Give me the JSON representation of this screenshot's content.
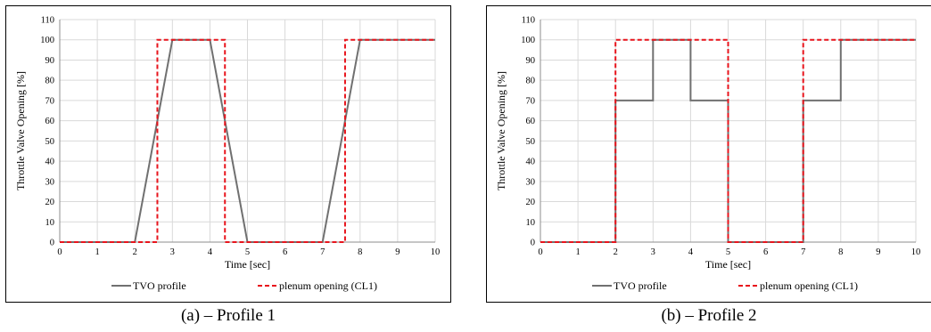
{
  "chart_data": [
    {
      "type": "line",
      "ylabel": "Throttle Valve Opening [%]",
      "xlabel": "Time [sec]",
      "xlim": [
        0,
        10
      ],
      "ylim": [
        0,
        110
      ],
      "xticks": [
        0,
        1,
        2,
        3,
        4,
        5,
        6,
        7,
        8,
        9,
        10
      ],
      "yticks": [
        0,
        10,
        20,
        30,
        40,
        50,
        60,
        70,
        80,
        90,
        100,
        110
      ],
      "grid": true,
      "legend": "bottom",
      "series": [
        {
          "name": "TVO profile",
          "color": "#707070",
          "style": "solid",
          "points": [
            [
              0,
              0
            ],
            [
              2,
              0
            ],
            [
              3,
              100
            ],
            [
              4,
              100
            ],
            [
              5,
              0
            ],
            [
              7,
              0
            ],
            [
              8,
              100
            ],
            [
              10,
              100
            ]
          ]
        },
        {
          "name": "plenum opening (CL1)",
          "color": "#e8141c",
          "style": "dashed",
          "points": [
            [
              0,
              0
            ],
            [
              2.6,
              0
            ],
            [
              2.6,
              100
            ],
            [
              4.4,
              100
            ],
            [
              4.4,
              0
            ],
            [
              7.6,
              0
            ],
            [
              7.6,
              100
            ],
            [
              10,
              100
            ]
          ]
        }
      ]
    },
    {
      "type": "line",
      "ylabel": "Throttle Valve Opening [%]",
      "xlabel": "Time [sec]",
      "xlim": [
        0,
        10
      ],
      "ylim": [
        0,
        110
      ],
      "xticks": [
        0,
        1,
        2,
        3,
        4,
        5,
        6,
        7,
        8,
        9,
        10
      ],
      "yticks": [
        0,
        10,
        20,
        30,
        40,
        50,
        60,
        70,
        80,
        90,
        100,
        110
      ],
      "grid": true,
      "legend": "bottom",
      "series": [
        {
          "name": "TVO profile",
          "color": "#707070",
          "style": "solid",
          "points": [
            [
              0,
              0
            ],
            [
              2,
              0
            ],
            [
              2,
              70
            ],
            [
              3,
              70
            ],
            [
              3,
              100
            ],
            [
              4,
              100
            ],
            [
              4,
              70
            ],
            [
              5,
              70
            ],
            [
              5,
              0
            ],
            [
              7,
              0
            ],
            [
              7,
              70
            ],
            [
              8,
              70
            ],
            [
              8,
              100
            ],
            [
              10,
              100
            ]
          ]
        },
        {
          "name": "plenum opening (CL1)",
          "color": "#e8141c",
          "style": "dashed",
          "points": [
            [
              0,
              0
            ],
            [
              2,
              0
            ],
            [
              2,
              100
            ],
            [
              5,
              100
            ],
            [
              5,
              0
            ],
            [
              7,
              0
            ],
            [
              7,
              100
            ],
            [
              10,
              100
            ]
          ]
        }
      ]
    }
  ],
  "captions": [
    "(a) – Profile 1",
    "(b) – Profile 2"
  ]
}
